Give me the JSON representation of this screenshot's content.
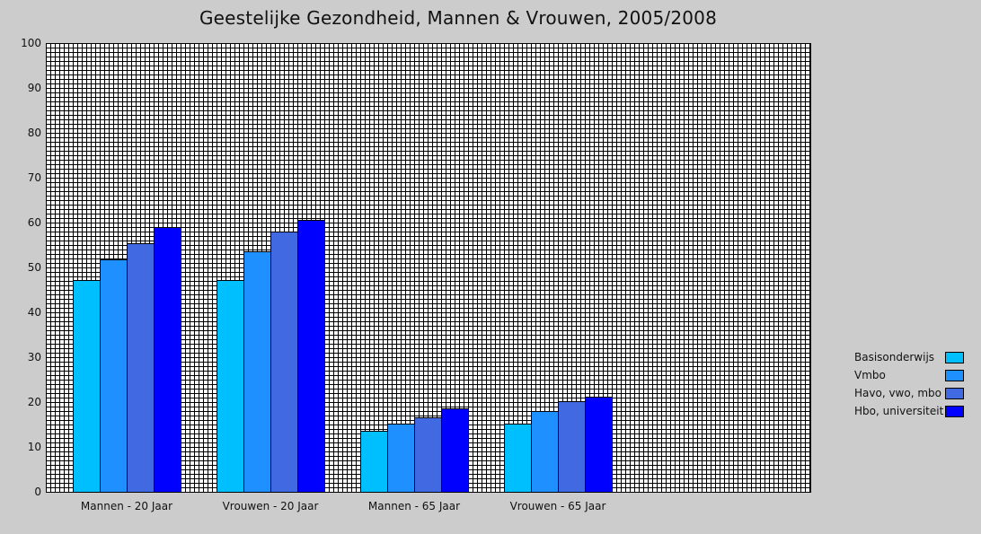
{
  "chart_data": {
    "type": "bar",
    "title": "Geestelijke Gezondheid,  Mannen & Vrouwen, 2005/2008",
    "xlabel": "",
    "ylabel": "",
    "ylim": [
      0,
      100
    ],
    "yticks": [
      0,
      10,
      20,
      30,
      40,
      50,
      60,
      70,
      80,
      90,
      100
    ],
    "grid": true,
    "legend_position": "right",
    "categories": [
      "Mannen - 20 Jaar",
      "Vrouwen - 20 Jaar",
      "Mannen - 65 Jaar",
      "Vrouwen - 65 Jaar"
    ],
    "series": [
      {
        "name": "Basisonderwijs",
        "color": "#00bfff",
        "values": [
          47.2,
          47.2,
          13.7,
          15.3
        ]
      },
      {
        "name": "Vmbo",
        "color": "#1e90ff",
        "values": [
          51.9,
          53.6,
          15.3,
          18.0
        ]
      },
      {
        "name": "Havo, vwo, mbo",
        "color": "#4169e1",
        "values": [
          55.5,
          58.0,
          16.7,
          20.3
        ]
      },
      {
        "name": "Hbo, universiteit",
        "color": "#0000ff",
        "values": [
          59.1,
          60.6,
          18.6,
          21.2
        ]
      }
    ],
    "colors": {
      "background": "#cccccc",
      "plot_background": "#ffffff",
      "grid": "#000000"
    }
  }
}
